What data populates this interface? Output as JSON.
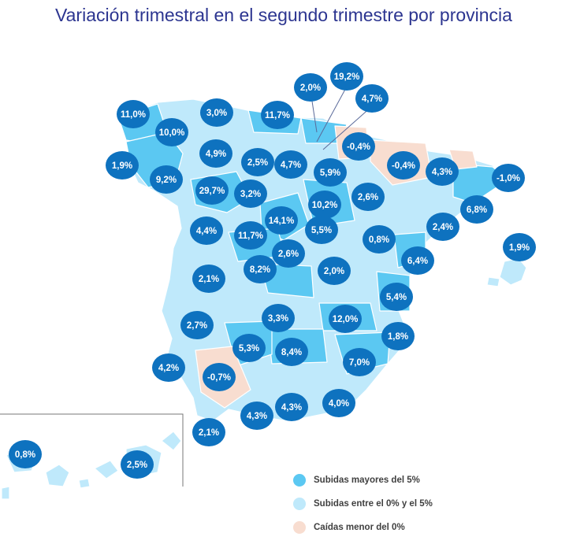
{
  "title": "Variación trimestral en el segundo trimestre por provincia",
  "colors": {
    "high": "#5bc8f2",
    "mid": "#bfe9fb",
    "neg": "#f8ddd0",
    "bubble": "#0e72bf",
    "bubble_text": "#ffffff"
  },
  "legend": [
    {
      "label": "Subidas mayores del 5%",
      "color": "#5bc8f2"
    },
    {
      "label": "Subidas entre el 0% y el 5%",
      "color": "#bfe9fb"
    },
    {
      "label": "Caídas menor del 0%",
      "color": "#f8ddd0"
    }
  ],
  "bubbles": [
    "11,0%",
    "10,0%",
    "1,9%",
    "9,2%",
    "3,0%",
    "4,9%",
    "11,7%",
    "2,0%",
    "19,2%",
    "4,7%",
    "-0,4%",
    "-0,4%",
    "2,5%",
    "4,7%",
    "5,9%",
    "29,7%",
    "3,2%",
    "10,2%",
    "2,6%",
    "4,3%",
    "-1,0%",
    "6,8%",
    "4,4%",
    "14,1%",
    "11,7%",
    "5,5%",
    "2,6%",
    "0,8%",
    "2,4%",
    "1,9%",
    "8,2%",
    "2,0%",
    "6,4%",
    "2,1%",
    "5,4%",
    "3,3%",
    "12,0%",
    "2,7%",
    "1,8%",
    "5,3%",
    "8,4%",
    "7,0%",
    "4,2%",
    "-0,7%",
    "4,0%",
    "4,3%",
    "4,3%",
    "2,1%",
    "0,8%",
    "2,5%"
  ]
}
